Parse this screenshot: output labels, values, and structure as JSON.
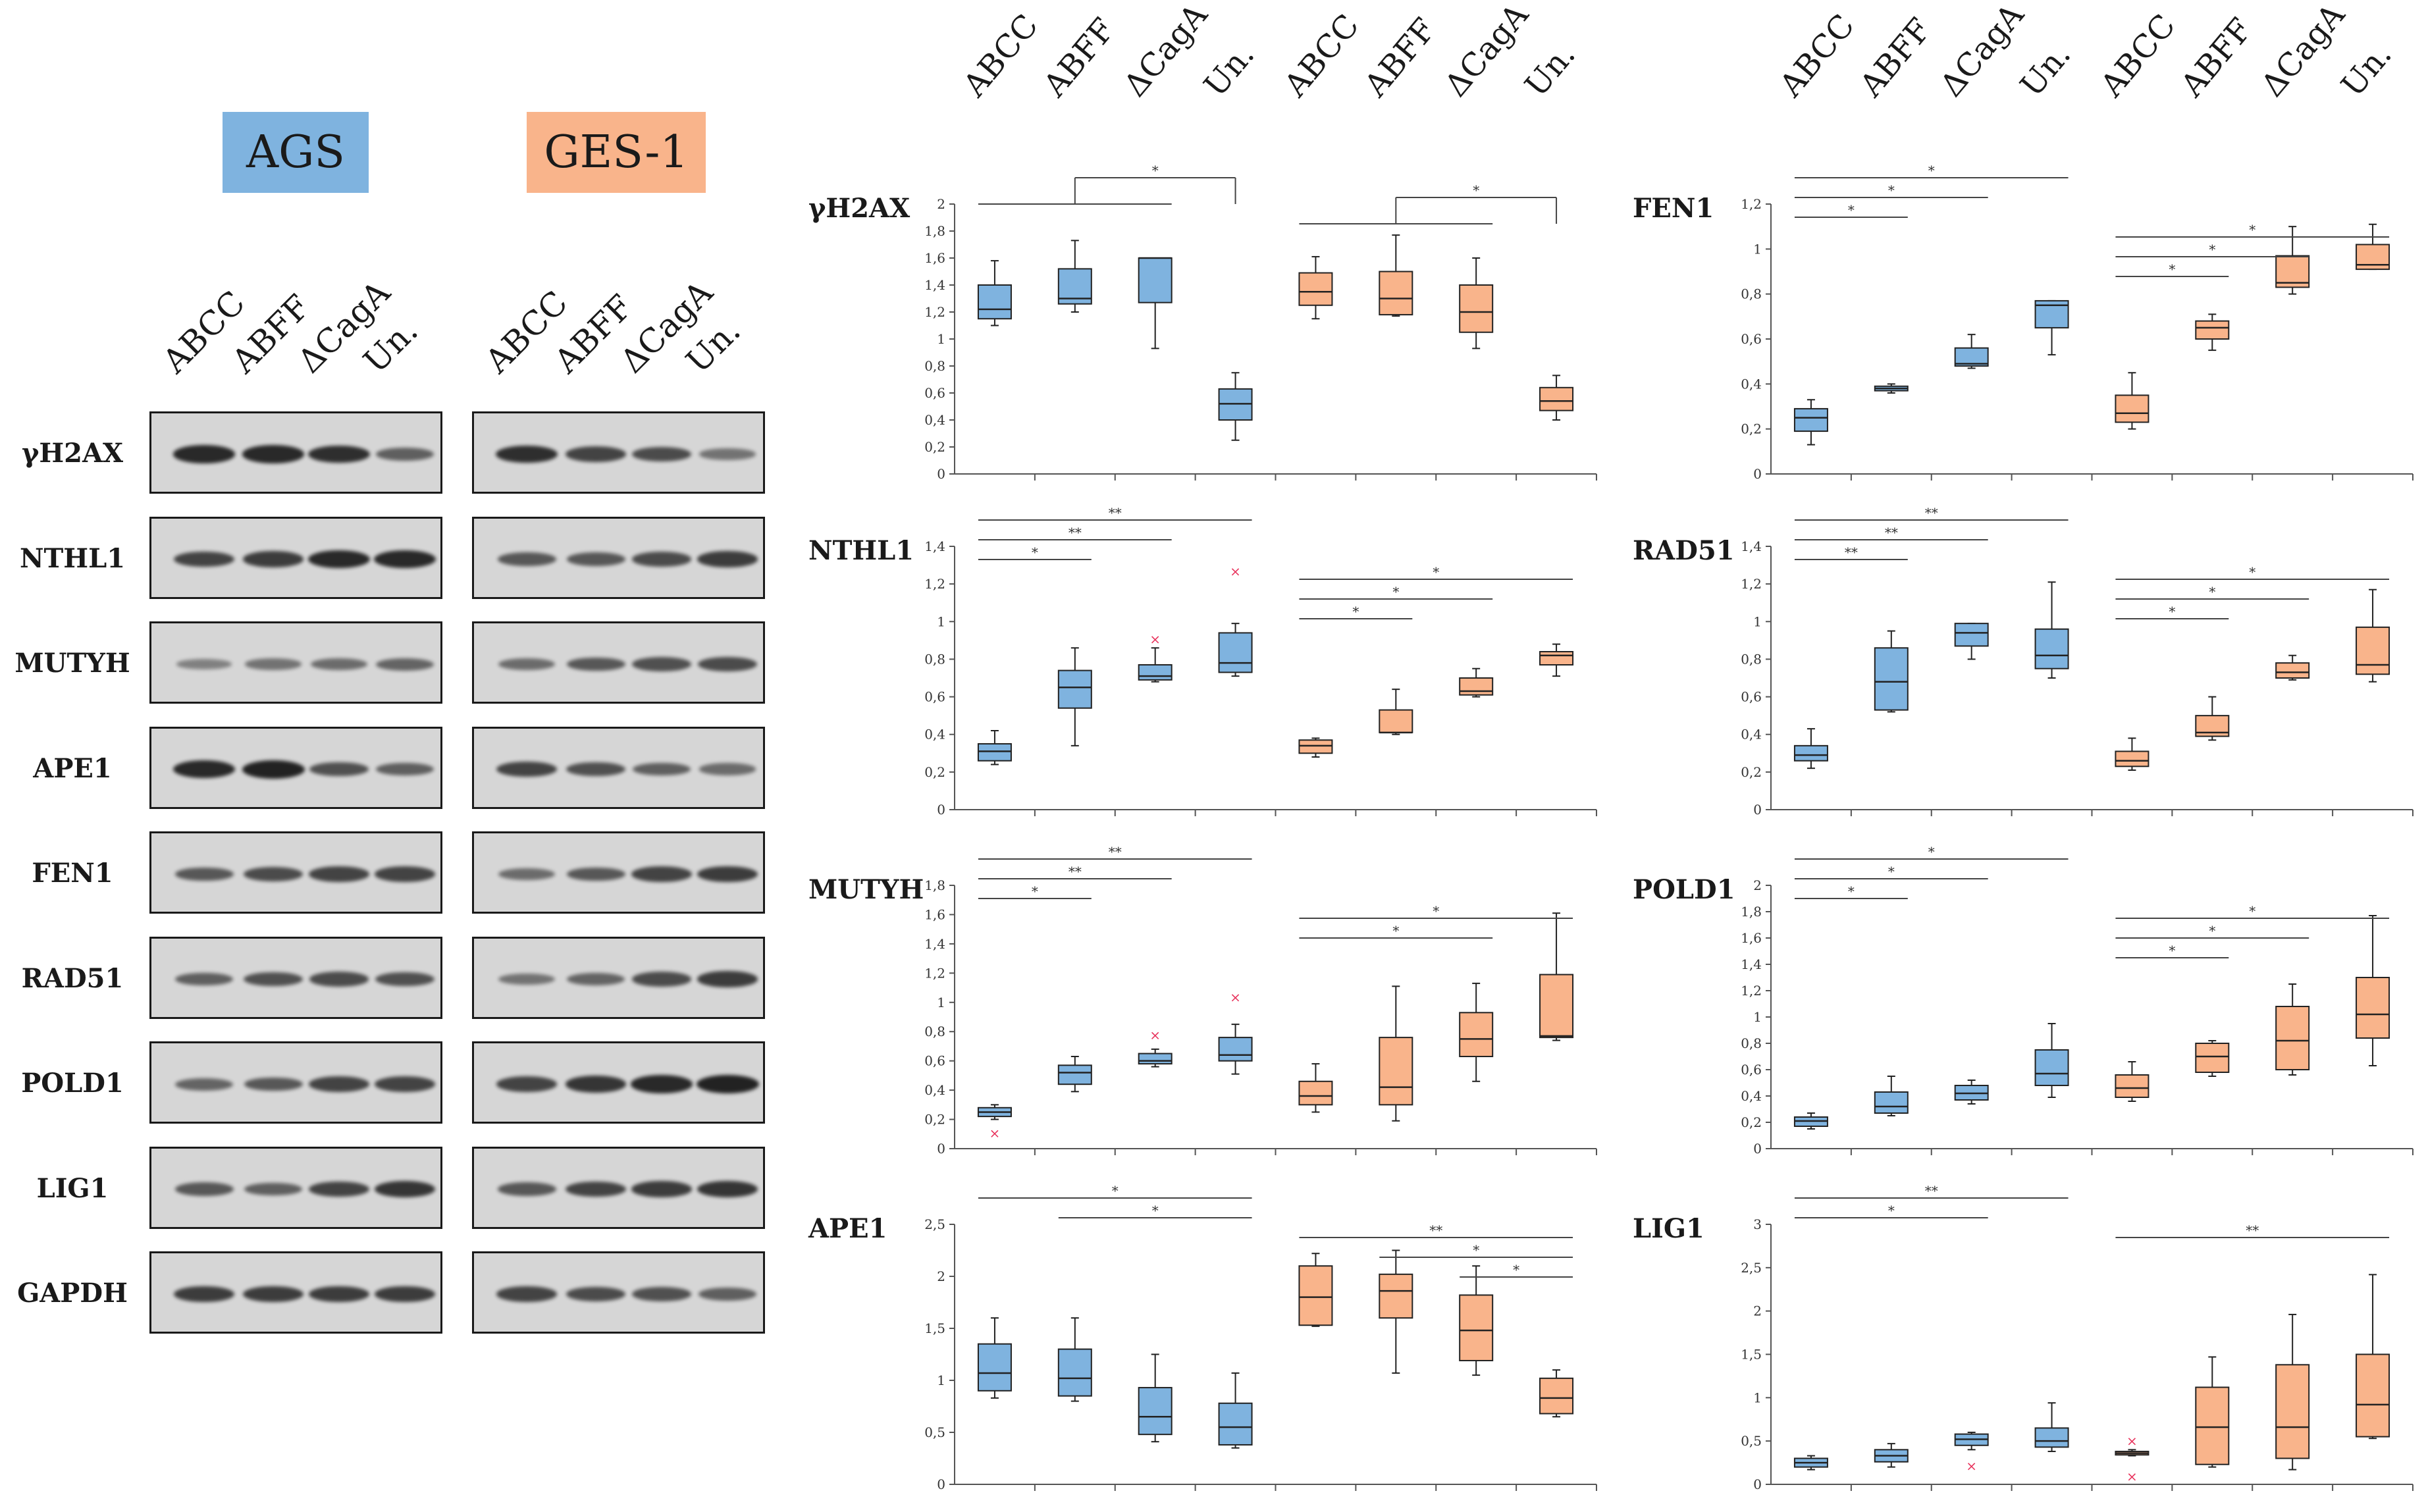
{
  "conditions": [
    {
      "label": "AGS",
      "color": "#7fb3df"
    },
    {
      "label": "GES-1",
      "color": "#f9b48b"
    }
  ],
  "blot": {
    "lanes": [
      "ABCC",
      "ABFF",
      "ΔCagA",
      "Un."
    ],
    "rows": [
      "γH2AX",
      "NTHL1",
      "MUTYH",
      "APE1",
      "FEN1",
      "RAD51",
      "POLD1",
      "LIG1",
      "GAPDH"
    ],
    "intensity": {
      "AGS": [
        [
          0.95,
          0.95,
          0.9,
          0.55
        ],
        [
          0.75,
          0.8,
          0.95,
          0.95
        ],
        [
          0.3,
          0.4,
          0.45,
          0.5
        ],
        [
          0.95,
          1.0,
          0.65,
          0.55
        ],
        [
          0.6,
          0.7,
          0.75,
          0.75
        ],
        [
          0.55,
          0.65,
          0.7,
          0.65
        ],
        [
          0.5,
          0.6,
          0.75,
          0.75
        ],
        [
          0.6,
          0.55,
          0.75,
          0.85
        ],
        [
          0.8,
          0.8,
          0.8,
          0.8
        ]
      ],
      "GES-1": [
        [
          0.9,
          0.75,
          0.7,
          0.4
        ],
        [
          0.6,
          0.6,
          0.7,
          0.8
        ],
        [
          0.45,
          0.6,
          0.65,
          0.7
        ],
        [
          0.75,
          0.65,
          0.55,
          0.45
        ],
        [
          0.45,
          0.6,
          0.75,
          0.8
        ],
        [
          0.4,
          0.5,
          0.7,
          0.8
        ],
        [
          0.75,
          0.85,
          0.95,
          1.0
        ],
        [
          0.6,
          0.75,
          0.8,
          0.85
        ],
        [
          0.75,
          0.7,
          0.65,
          0.55
        ]
      ]
    }
  },
  "chart_groups": [
    "ABCC",
    "ABFF",
    "ΔCagA",
    "Un.",
    "ABCC",
    "ABFF",
    "ΔCagA",
    "Un."
  ],
  "chart_colors": {
    "AGS": "#7fb3df",
    "GES-1": "#f9b48b",
    "outlier": "#e8305a"
  },
  "chart_data": [
    {
      "type": "box",
      "name": "γH2AX",
      "ylim": [
        0,
        2
      ],
      "ticks": [
        "0",
        "0,2",
        "0,4",
        "0,6",
        "0,8",
        "1",
        "1,2",
        "1,4",
        "1,6",
        "1,8",
        "2"
      ],
      "boxes": [
        {
          "min": 1.1,
          "q1": 1.15,
          "med": 1.22,
          "q3": 1.4,
          "max": 1.58
        },
        {
          "min": 1.2,
          "q1": 1.26,
          "med": 1.3,
          "q3": 1.52,
          "max": 1.73
        },
        {
          "min": 0.93,
          "q1": 1.27,
          "med": 1.6,
          "q3": 1.6,
          "max": 1.6
        },
        {
          "min": 0.25,
          "q1": 0.4,
          "med": 0.52,
          "q3": 0.63,
          "max": 0.75
        },
        {
          "min": 1.15,
          "q1": 1.25,
          "med": 1.35,
          "q3": 1.49,
          "max": 1.61
        },
        {
          "min": 1.17,
          "q1": 1.18,
          "med": 1.3,
          "q3": 1.5,
          "max": 1.77
        },
        {
          "min": 0.93,
          "q1": 1.05,
          "med": 1.2,
          "q3": 1.4,
          "max": 1.6
        },
        {
          "min": 0.4,
          "q1": 0.47,
          "med": 0.54,
          "q3": 0.64,
          "max": 0.73
        }
      ],
      "sig": [
        {
          "from": 0,
          "to": 2,
          "label": "*",
          "bracket": 3
        },
        {
          "from": 4,
          "to": 6,
          "label": "*",
          "bracket": 7
        }
      ]
    },
    {
      "type": "box",
      "name": "FEN1",
      "ylim": [
        0,
        1.2
      ],
      "ticks": [
        "0",
        "0,2",
        "0,4",
        "0,6",
        "0,8",
        "1",
        "1,2"
      ],
      "boxes": [
        {
          "min": 0.13,
          "q1": 0.19,
          "med": 0.25,
          "q3": 0.29,
          "max": 0.33
        },
        {
          "min": 0.36,
          "q1": 0.37,
          "med": 0.38,
          "q3": 0.39,
          "max": 0.4
        },
        {
          "min": 0.47,
          "q1": 0.48,
          "med": 0.49,
          "q3": 0.56,
          "max": 0.62
        },
        {
          "min": 0.53,
          "q1": 0.65,
          "med": 0.75,
          "q3": 0.77,
          "max": 0.77
        },
        {
          "min": 0.2,
          "q1": 0.23,
          "med": 0.27,
          "q3": 0.35,
          "max": 0.45
        },
        {
          "min": 0.55,
          "q1": 0.6,
          "med": 0.65,
          "q3": 0.68,
          "max": 0.71
        },
        {
          "min": 0.8,
          "q1": 0.83,
          "med": 0.85,
          "q3": 0.97,
          "max": 1.1
        },
        {
          "min": 0.91,
          "q1": 0.91,
          "med": 0.93,
          "q3": 1.02,
          "max": 1.11
        }
      ],
      "sig": [
        {
          "from": 0,
          "to": 3,
          "label": "*"
        },
        {
          "from": 0,
          "to": 2,
          "label": "*"
        },
        {
          "from": 0,
          "to": 1,
          "label": "*"
        },
        {
          "from": 4,
          "to": 7,
          "label": "*"
        },
        {
          "from": 4,
          "to": 6,
          "label": "*"
        },
        {
          "from": 4,
          "to": 5,
          "label": "*"
        }
      ]
    },
    {
      "type": "box",
      "name": "NTHL1",
      "ylim": [
        0,
        1.4
      ],
      "ticks": [
        "0",
        "0,2",
        "0,4",
        "0,6",
        "0,8",
        "1",
        "1,2",
        "1,4"
      ],
      "boxes": [
        {
          "min": 0.24,
          "q1": 0.26,
          "med": 0.31,
          "q3": 0.35,
          "max": 0.42
        },
        {
          "min": 0.34,
          "q1": 0.54,
          "med": 0.65,
          "q3": 0.74,
          "max": 0.86
        },
        {
          "min": 0.68,
          "q1": 0.69,
          "med": 0.71,
          "q3": 0.77,
          "max": 0.86,
          "out": [
            0.91
          ]
        },
        {
          "min": 0.71,
          "q1": 0.73,
          "med": 0.78,
          "q3": 0.94,
          "max": 0.99,
          "out": [
            1.27
          ]
        },
        {
          "min": 0.28,
          "q1": 0.3,
          "med": 0.34,
          "q3": 0.37,
          "max": 0.38
        },
        {
          "min": 0.4,
          "q1": 0.41,
          "med": 0.41,
          "q3": 0.53,
          "max": 0.64
        },
        {
          "min": 0.6,
          "q1": 0.61,
          "med": 0.63,
          "q3": 0.7,
          "max": 0.75
        },
        {
          "min": 0.71,
          "q1": 0.77,
          "med": 0.82,
          "q3": 0.84,
          "max": 0.88
        }
      ],
      "sig": [
        {
          "from": 0,
          "to": 3,
          "label": "**"
        },
        {
          "from": 0,
          "to": 2,
          "label": "**"
        },
        {
          "from": 0,
          "to": 1,
          "label": "*"
        },
        {
          "from": 4,
          "to": 7,
          "label": "*"
        },
        {
          "from": 4,
          "to": 6,
          "label": "*"
        },
        {
          "from": 4,
          "to": 5,
          "label": "*"
        }
      ]
    },
    {
      "type": "box",
      "name": "RAD51",
      "ylim": [
        0,
        1.4
      ],
      "ticks": [
        "0",
        "0,2",
        "0,4",
        "0,6",
        "0,8",
        "1",
        "1,2",
        "1,4"
      ],
      "boxes": [
        {
          "min": 0.22,
          "q1": 0.26,
          "med": 0.29,
          "q3": 0.34,
          "max": 0.43
        },
        {
          "min": 0.52,
          "q1": 0.53,
          "med": 0.68,
          "q3": 0.86,
          "max": 0.95
        },
        {
          "min": 0.8,
          "q1": 0.87,
          "med": 0.94,
          "q3": 0.99,
          "max": 0.99
        },
        {
          "min": 0.7,
          "q1": 0.75,
          "med": 0.82,
          "q3": 0.96,
          "max": 1.21
        },
        {
          "min": 0.21,
          "q1": 0.23,
          "med": 0.26,
          "q3": 0.31,
          "max": 0.38
        },
        {
          "min": 0.37,
          "q1": 0.39,
          "med": 0.41,
          "q3": 0.5,
          "max": 0.6
        },
        {
          "min": 0.69,
          "q1": 0.7,
          "med": 0.73,
          "q3": 0.78,
          "max": 0.82
        },
        {
          "min": 0.68,
          "q1": 0.72,
          "med": 0.77,
          "q3": 0.97,
          "max": 1.17
        }
      ],
      "sig": [
        {
          "from": 0,
          "to": 3,
          "label": "**"
        },
        {
          "from": 0,
          "to": 2,
          "label": "**"
        },
        {
          "from": 0,
          "to": 1,
          "label": "**"
        },
        {
          "from": 4,
          "to": 7,
          "label": "*"
        },
        {
          "from": 4,
          "to": 6,
          "label": "*"
        },
        {
          "from": 4,
          "to": 5,
          "label": "*"
        }
      ]
    },
    {
      "type": "box",
      "name": "MUTYH",
      "ylim": [
        0,
        1.8
      ],
      "ticks": [
        "0",
        "0,2",
        "0,4",
        "0,6",
        "0,8",
        "1",
        "1,2",
        "1,4",
        "1,6",
        "1,8"
      ],
      "boxes": [
        {
          "min": 0.2,
          "q1": 0.22,
          "med": 0.25,
          "q3": 0.28,
          "max": 0.3,
          "out": [
            0.11
          ]
        },
        {
          "min": 0.39,
          "q1": 0.44,
          "med": 0.52,
          "q3": 0.57,
          "max": 0.63
        },
        {
          "min": 0.56,
          "q1": 0.58,
          "med": 0.6,
          "q3": 0.65,
          "max": 0.68,
          "out": [
            0.78
          ]
        },
        {
          "min": 0.51,
          "q1": 0.6,
          "med": 0.64,
          "q3": 0.76,
          "max": 0.85,
          "out": [
            1.04
          ]
        },
        {
          "min": 0.25,
          "q1": 0.3,
          "med": 0.36,
          "q3": 0.46,
          "max": 0.58
        },
        {
          "min": 0.19,
          "q1": 0.3,
          "med": 0.42,
          "q3": 0.76,
          "max": 1.11
        },
        {
          "min": 0.46,
          "q1": 0.63,
          "med": 0.75,
          "q3": 0.93,
          "max": 1.13
        },
        {
          "min": 0.74,
          "q1": 0.76,
          "med": 0.77,
          "q3": 1.19,
          "max": 1.61
        }
      ],
      "sig": [
        {
          "from": 0,
          "to": 3,
          "label": "**"
        },
        {
          "from": 0,
          "to": 2,
          "label": "**"
        },
        {
          "from": 0,
          "to": 1,
          "label": "*"
        },
        {
          "from": 4,
          "to": 7,
          "label": "*"
        },
        {
          "from": 4,
          "to": 6,
          "label": "*"
        }
      ]
    },
    {
      "type": "box",
      "name": "POLD1",
      "ylim": [
        0,
        2
      ],
      "ticks": [
        "0",
        "0,2",
        "0,4",
        "0,6",
        "0,8",
        "1",
        "1,2",
        "1,4",
        "1,6",
        "1,8",
        "2"
      ],
      "boxes": [
        {
          "min": 0.15,
          "q1": 0.17,
          "med": 0.21,
          "q3": 0.24,
          "max": 0.27
        },
        {
          "min": 0.25,
          "q1": 0.27,
          "med": 0.32,
          "q3": 0.43,
          "max": 0.55
        },
        {
          "min": 0.34,
          "q1": 0.37,
          "med": 0.42,
          "q3": 0.48,
          "max": 0.52
        },
        {
          "min": 0.39,
          "q1": 0.48,
          "med": 0.57,
          "q3": 0.75,
          "max": 0.95
        },
        {
          "min": 0.36,
          "q1": 0.39,
          "med": 0.46,
          "q3": 0.56,
          "max": 0.66
        },
        {
          "min": 0.55,
          "q1": 0.58,
          "med": 0.7,
          "q3": 0.8,
          "max": 0.82
        },
        {
          "min": 0.56,
          "q1": 0.6,
          "med": 0.82,
          "q3": 1.08,
          "max": 1.25
        },
        {
          "min": 0.63,
          "q1": 0.84,
          "med": 1.02,
          "q3": 1.3,
          "max": 1.77
        }
      ],
      "sig": [
        {
          "from": 0,
          "to": 3,
          "label": "*"
        },
        {
          "from": 0,
          "to": 2,
          "label": "*"
        },
        {
          "from": 0,
          "to": 1,
          "label": "*"
        },
        {
          "from": 4,
          "to": 7,
          "label": "*"
        },
        {
          "from": 4,
          "to": 6,
          "label": "*"
        },
        {
          "from": 4,
          "to": 5,
          "label": "*"
        }
      ]
    },
    {
      "type": "box",
      "name": "APE1",
      "ylim": [
        0,
        2.5
      ],
      "ticks": [
        "0",
        "0,5",
        "1",
        "1,5",
        "2",
        "2,5"
      ],
      "boxes": [
        {
          "min": 0.83,
          "q1": 0.9,
          "med": 1.07,
          "q3": 1.35,
          "max": 1.6
        },
        {
          "min": 0.8,
          "q1": 0.85,
          "med": 1.02,
          "q3": 1.3,
          "max": 1.6
        },
        {
          "min": 0.41,
          "q1": 0.48,
          "med": 0.65,
          "q3": 0.93,
          "max": 1.25
        },
        {
          "min": 0.35,
          "q1": 0.38,
          "med": 0.55,
          "q3": 0.78,
          "max": 1.07
        },
        {
          "min": 1.52,
          "q1": 1.53,
          "med": 1.8,
          "q3": 2.1,
          "max": 2.22
        },
        {
          "min": 1.07,
          "q1": 1.6,
          "med": 1.86,
          "q3": 2.02,
          "max": 2.25
        },
        {
          "min": 1.05,
          "q1": 1.19,
          "med": 1.48,
          "q3": 1.82,
          "max": 2.1
        },
        {
          "min": 0.65,
          "q1": 0.68,
          "med": 0.83,
          "q3": 1.02,
          "max": 1.1
        }
      ],
      "sig": [
        {
          "from": 0,
          "to": 3,
          "label": "*"
        },
        {
          "from": 1,
          "to": 3,
          "label": "*"
        },
        {
          "from": 4,
          "to": 7,
          "label": "**"
        },
        {
          "from": 5,
          "to": 7,
          "label": "*"
        },
        {
          "from": 6,
          "to": 7,
          "label": "*"
        }
      ]
    },
    {
      "type": "box",
      "name": "LIG1",
      "ylim": [
        0,
        3
      ],
      "ticks": [
        "0",
        "0,5",
        "1",
        "1,5",
        "2",
        "2,5",
        "3"
      ],
      "boxes": [
        {
          "min": 0.17,
          "q1": 0.2,
          "med": 0.25,
          "q3": 0.3,
          "max": 0.33
        },
        {
          "min": 0.2,
          "q1": 0.26,
          "med": 0.33,
          "q3": 0.4,
          "max": 0.47
        },
        {
          "min": 0.4,
          "q1": 0.45,
          "med": 0.52,
          "q3": 0.58,
          "max": 0.6,
          "out": [
            0.22
          ]
        },
        {
          "min": 0.38,
          "q1": 0.43,
          "med": 0.5,
          "q3": 0.65,
          "max": 0.94
        },
        {
          "min": 0.33,
          "q1": 0.34,
          "med": 0.36,
          "q3": 0.38,
          "max": 0.4,
          "out": [
            0.51,
            0.1
          ]
        },
        {
          "min": 0.2,
          "q1": 0.23,
          "med": 0.66,
          "q3": 1.12,
          "max": 1.47
        },
        {
          "min": 0.17,
          "q1": 0.3,
          "med": 0.66,
          "q3": 1.38,
          "max": 1.96
        },
        {
          "min": 0.53,
          "q1": 0.55,
          "med": 0.92,
          "q3": 1.5,
          "max": 2.42
        }
      ],
      "sig": [
        {
          "from": 0,
          "to": 3,
          "label": "**"
        },
        {
          "from": 0,
          "to": 2,
          "label": "*"
        },
        {
          "from": 4,
          "to": 7,
          "label": "**"
        }
      ]
    }
  ]
}
